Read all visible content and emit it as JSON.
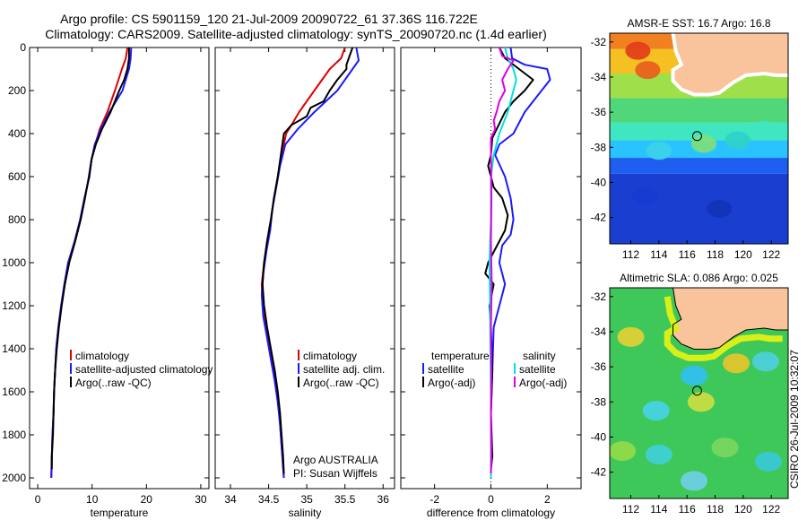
{
  "header": {
    "line1": "Argo profile: CS 5901159_120 21-Jul-2009 20090722_61 37.36S 116.722E",
    "line2": "Climatology: CARS2009. Satellite-adjusted climatology: synTS_20090720.nc (1.4d earlier)"
  },
  "colors": {
    "climatology": "#e00000",
    "satellite": "#1a1aff",
    "argo": "#000000",
    "satellite_salt": "#00e0e0",
    "argo_salt": "#e000e0",
    "land": "#f9c39b"
  },
  "credit": "CSIRO 26-Jul-2009 10:32:07",
  "chart_data": [
    {
      "id": "temperature",
      "type": "line",
      "xlabel": "temperature",
      "ylabel": "",
      "xlim": [
        -1.5,
        31.5
      ],
      "ylim": [
        2050,
        0
      ],
      "xticks": [
        0,
        10,
        20,
        30
      ],
      "yticks": [
        0,
        200,
        400,
        600,
        800,
        1000,
        1200,
        1400,
        1600,
        1800,
        2000
      ],
      "series": [
        {
          "name": "climatology",
          "color": "#e00000",
          "points": [
            [
              16.5,
              0
            ],
            [
              16.2,
              50
            ],
            [
              15.5,
              100
            ],
            [
              14.2,
              200
            ],
            [
              12.8,
              300
            ],
            [
              11.4,
              380
            ],
            [
              10.6,
              450
            ],
            [
              9.9,
              520
            ],
            [
              9.5,
              600
            ],
            [
              8.6,
              700
            ],
            [
              7.8,
              800
            ],
            [
              6.8,
              900
            ],
            [
              5.6,
              1000
            ],
            [
              4.9,
              1100
            ],
            [
              4.3,
              1200
            ],
            [
              3.8,
              1300
            ],
            [
              3.4,
              1400
            ],
            [
              3.2,
              1500
            ],
            [
              3.0,
              1600
            ],
            [
              2.9,
              1700
            ],
            [
              2.7,
              1800
            ],
            [
              2.6,
              1900
            ],
            [
              2.5,
              2000
            ]
          ]
        },
        {
          "name": "satellite-adjusted climatology",
          "color": "#1a1aff",
          "points": [
            [
              17.2,
              0
            ],
            [
              17.1,
              50
            ],
            [
              16.8,
              100
            ],
            [
              15.6,
              200
            ],
            [
              13.2,
              300
            ],
            [
              11.6,
              380
            ],
            [
              10.5,
              450
            ],
            [
              9.9,
              520
            ],
            [
              9.5,
              600
            ],
            [
              8.6,
              700
            ],
            [
              7.8,
              800
            ],
            [
              6.8,
              900
            ],
            [
              5.6,
              1000
            ],
            [
              4.9,
              1100
            ],
            [
              4.3,
              1200
            ],
            [
              3.8,
              1300
            ],
            [
              3.4,
              1400
            ],
            [
              3.2,
              1500
            ],
            [
              3.0,
              1600
            ],
            [
              2.9,
              1700
            ],
            [
              2.7,
              1800
            ],
            [
              2.6,
              1900
            ],
            [
              2.5,
              2000
            ]
          ]
        },
        {
          "name": "Argo(..raw -QC)",
          "color": "#000000",
          "points": [
            [
              16.8,
              0
            ],
            [
              16.8,
              50
            ],
            [
              16.5,
              100
            ],
            [
              15.9,
              150
            ],
            [
              15.0,
              200
            ],
            [
              13.4,
              300
            ],
            [
              11.8,
              380
            ],
            [
              10.7,
              450
            ],
            [
              9.9,
              520
            ],
            [
              9.4,
              600
            ],
            [
              8.7,
              700
            ],
            [
              7.9,
              800
            ],
            [
              6.9,
              900
            ],
            [
              5.8,
              1000
            ],
            [
              5.0,
              1100
            ],
            [
              4.4,
              1200
            ],
            [
              3.9,
              1300
            ],
            [
              3.5,
              1400
            ],
            [
              3.2,
              1500
            ],
            [
              3.0,
              1600
            ],
            [
              2.9,
              1700
            ],
            [
              2.8,
              1800
            ],
            [
              2.6,
              1900
            ],
            [
              2.6,
              1960
            ]
          ]
        }
      ],
      "legend": {
        "placement": "middle-right",
        "entries": [
          "climatology",
          "satellite-adjusted climatology",
          "Argo(..raw -QC)"
        ]
      }
    },
    {
      "id": "salinity",
      "type": "line",
      "xlabel": "salinity",
      "xlim": [
        33.8,
        36.15
      ],
      "ylim": [
        2050,
        0
      ],
      "xticks": [
        34,
        34.5,
        35,
        35.5,
        36
      ],
      "series": [
        {
          "name": "climatology",
          "color": "#e00000",
          "points": [
            [
              35.5,
              0
            ],
            [
              35.45,
              50
            ],
            [
              35.3,
              100
            ],
            [
              35.1,
              200
            ],
            [
              34.9,
              300
            ],
            [
              34.8,
              360
            ],
            [
              34.73,
              400
            ],
            [
              34.67,
              500
            ],
            [
              34.62,
              600
            ],
            [
              34.57,
              700
            ],
            [
              34.53,
              800
            ],
            [
              34.48,
              900
            ],
            [
              34.44,
              1000
            ],
            [
              34.41,
              1100
            ],
            [
              34.42,
              1200
            ],
            [
              34.47,
              1300
            ],
            [
              34.52,
              1400
            ],
            [
              34.57,
              1500
            ],
            [
              34.61,
              1600
            ],
            [
              34.64,
              1700
            ],
            [
              34.66,
              1800
            ],
            [
              34.68,
              1900
            ],
            [
              34.7,
              2000
            ]
          ]
        },
        {
          "name": "satellite adj. clim.",
          "color": "#1a1aff",
          "points": [
            [
              35.65,
              0
            ],
            [
              35.68,
              60
            ],
            [
              35.6,
              100
            ],
            [
              35.4,
              200
            ],
            [
              35.1,
              300
            ],
            [
              34.88,
              380
            ],
            [
              34.72,
              450
            ],
            [
              34.65,
              550
            ],
            [
              34.6,
              650
            ],
            [
              34.55,
              750
            ],
            [
              34.52,
              850
            ],
            [
              34.47,
              950
            ],
            [
              34.43,
              1050
            ],
            [
              34.41,
              1150
            ],
            [
              34.43,
              1250
            ],
            [
              34.48,
              1350
            ],
            [
              34.53,
              1450
            ],
            [
              34.58,
              1550
            ],
            [
              34.62,
              1650
            ],
            [
              34.65,
              1750
            ],
            [
              34.67,
              1850
            ],
            [
              34.69,
              1950
            ],
            [
              34.7,
              2000
            ]
          ]
        },
        {
          "name": "Argo(..raw -QC)",
          "color": "#000000",
          "points": [
            [
              35.6,
              0
            ],
            [
              35.52,
              80
            ],
            [
              35.52,
              100
            ],
            [
              35.4,
              150
            ],
            [
              35.3,
              200
            ],
            [
              35.22,
              250
            ],
            [
              35.05,
              280
            ],
            [
              35.0,
              320
            ],
            [
              34.8,
              360
            ],
            [
              34.7,
              400
            ],
            [
              34.66,
              500
            ],
            [
              34.62,
              600
            ],
            [
              34.57,
              700
            ],
            [
              34.53,
              800
            ],
            [
              34.48,
              900
            ],
            [
              34.44,
              1000
            ],
            [
              34.42,
              1100
            ],
            [
              34.44,
              1200
            ],
            [
              34.48,
              1300
            ],
            [
              34.53,
              1400
            ],
            [
              34.58,
              1500
            ],
            [
              34.62,
              1600
            ],
            [
              34.65,
              1700
            ],
            [
              34.67,
              1800
            ],
            [
              34.69,
              1900
            ],
            [
              34.7,
              1980
            ]
          ]
        }
      ],
      "legend": {
        "placement": "middle-right",
        "entries": [
          "climatology",
          "satellite adj. clim.",
          "Argo(..raw -QC)"
        ]
      },
      "annotation": [
        "Argo AUSTRALIA",
        "PI: Susan Wijffels"
      ]
    },
    {
      "id": "difference",
      "type": "line",
      "xlabel": "difference from climatology",
      "xlim": [
        -3.2,
        3.2
      ],
      "ylim": [
        2050,
        0
      ],
      "xticks": [
        -2,
        0,
        2
      ],
      "legend_temperature_title": "temperature",
      "legend_salinity_title": "salinity",
      "series": [
        {
          "name": "satellite",
          "group": "temperature",
          "color": "#1a1aff",
          "points": [
            [
              0.7,
              0
            ],
            [
              0.75,
              50
            ],
            [
              1.2,
              80
            ],
            [
              2.0,
              100
            ],
            [
              2.1,
              150
            ],
            [
              1.8,
              200
            ],
            [
              1.2,
              300
            ],
            [
              0.8,
              400
            ],
            [
              0.3,
              450
            ],
            [
              0.15,
              500
            ],
            [
              0.5,
              600
            ],
            [
              0.7,
              700
            ],
            [
              0.8,
              800
            ],
            [
              0.7,
              870
            ],
            [
              0.4,
              920
            ],
            [
              0.3,
              1000
            ],
            [
              0.5,
              1100
            ],
            [
              0.3,
              1200
            ],
            [
              0.1,
              1300
            ],
            [
              0.05,
              1500
            ],
            [
              0,
              1700
            ],
            [
              0,
              2000
            ]
          ]
        },
        {
          "name": "Argo(-adj)",
          "group": "temperature",
          "color": "#000000",
          "points": [
            [
              0.3,
              0
            ],
            [
              0.5,
              50
            ],
            [
              1.0,
              100
            ],
            [
              1.5,
              150
            ],
            [
              1.2,
              200
            ],
            [
              0.8,
              250
            ],
            [
              0.5,
              300
            ],
            [
              0.2,
              380
            ],
            [
              0.05,
              420
            ],
            [
              0.0,
              500
            ],
            [
              -0.1,
              550
            ],
            [
              0.1,
              650
            ],
            [
              0.4,
              700
            ],
            [
              0.6,
              780
            ],
            [
              0.5,
              850
            ],
            [
              0.3,
              900
            ],
            [
              0.1,
              950
            ],
            [
              -0.1,
              1000
            ],
            [
              -0.2,
              1050
            ],
            [
              0.1,
              1100
            ],
            [
              -0.05,
              1200
            ],
            [
              0.0,
              1300
            ],
            [
              0.05,
              1500
            ],
            [
              0.0,
              1700
            ],
            [
              0.05,
              1900
            ],
            [
              0.0,
              1960
            ]
          ]
        },
        {
          "name": "satellite",
          "group": "salinity",
          "color": "#00e0e0",
          "points": [
            [
              0.5,
              0
            ],
            [
              0.6,
              50
            ],
            [
              0.8,
              100
            ],
            [
              0.9,
              150
            ],
            [
              0.8,
              200
            ],
            [
              0.6,
              300
            ],
            [
              0.3,
              400
            ],
            [
              0.1,
              500
            ],
            [
              0.0,
              600
            ],
            [
              0.0,
              800
            ],
            [
              -0.05,
              1000
            ],
            [
              -0.03,
              1200
            ],
            [
              -0.02,
              1400
            ],
            [
              0.0,
              1600
            ],
            [
              0.0,
              1800
            ],
            [
              0.0,
              2000
            ]
          ]
        },
        {
          "name": "Argo(-adj)",
          "group": "salinity",
          "color": "#e000e0",
          "points": [
            [
              0.3,
              0
            ],
            [
              0.4,
              40
            ],
            [
              0.8,
              60
            ],
            [
              0.6,
              100
            ],
            [
              0.4,
              150
            ],
            [
              0.5,
              200
            ],
            [
              0.3,
              250
            ],
            [
              0.2,
              300
            ],
            [
              0.1,
              340
            ],
            [
              0.15,
              380
            ],
            [
              0.0,
              420
            ],
            [
              0.0,
              500
            ],
            [
              0.02,
              700
            ],
            [
              0.0,
              900
            ],
            [
              0.03,
              1100
            ],
            [
              0.0,
              1300
            ],
            [
              0.02,
              1500
            ],
            [
              0.0,
              1700
            ],
            [
              0.02,
              1900
            ],
            [
              0.0,
              1980
            ]
          ]
        }
      ],
      "legend": {
        "placement": "middle",
        "entries": [
          "satellite",
          "Argo(-adj)",
          "satellite",
          "Argo(-adj)"
        ]
      }
    }
  ],
  "maps": [
    {
      "id": "sst_map",
      "title": "AMSR-E SST: 16.7 Argo: 16.8",
      "xticks": [
        112,
        114,
        116,
        118,
        120,
        122
      ],
      "yticks": [
        -32,
        -34,
        -36,
        -38,
        -40,
        -42
      ],
      "xlim": [
        110.5,
        123.2
      ],
      "ylim": [
        -43.5,
        -31.5
      ],
      "profile_location": [
        116.72,
        -37.36
      ]
    },
    {
      "id": "sla_map",
      "title": "Altimetric SLA: 0.086 Argo: 0.025",
      "xticks": [
        112,
        114,
        116,
        118,
        120,
        122
      ],
      "yticks": [
        -32,
        -34,
        -36,
        -38,
        -40,
        -42
      ],
      "xlim": [
        110.5,
        123.2
      ],
      "ylim": [
        -43.5,
        -31.5
      ],
      "profile_location": [
        116.72,
        -37.36
      ]
    }
  ]
}
